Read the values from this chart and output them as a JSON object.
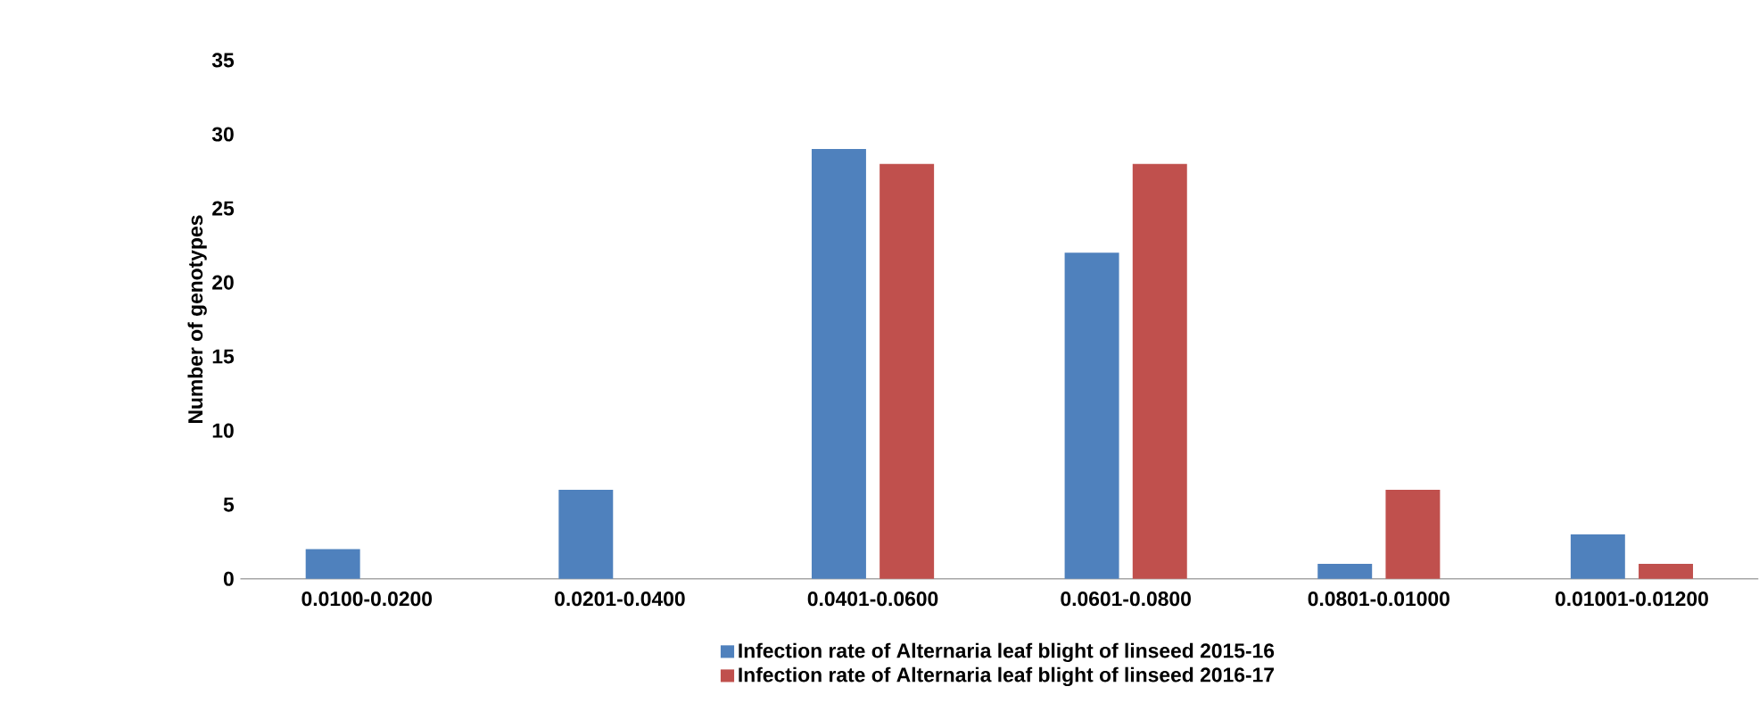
{
  "chart_data": {
    "type": "bar",
    "ylabel": "Number of genotypes",
    "categories": [
      "0.0100-0.0200",
      "0.0201-0.0400",
      "0.0401-0.0600",
      "0.0601-0.0800",
      "0.0801-0.01000",
      "0.01001-0.01200"
    ],
    "series": [
      {
        "name": "Infection rate of Alternaria leaf blight of linseed 2015-16",
        "color": "#4f81bd",
        "values": [
          2,
          6,
          29,
          22,
          1,
          3
        ]
      },
      {
        "name": "Infection rate of Alternaria leaf blight of linseed 2016-17",
        "color": "#c0504d",
        "values": [
          0,
          0,
          28,
          28,
          6,
          1
        ]
      }
    ],
    "ylim": [
      0,
      35
    ],
    "yticks": [
      0,
      5,
      10,
      15,
      20,
      25,
      30,
      35
    ],
    "grid": false,
    "legend": "bottom"
  }
}
